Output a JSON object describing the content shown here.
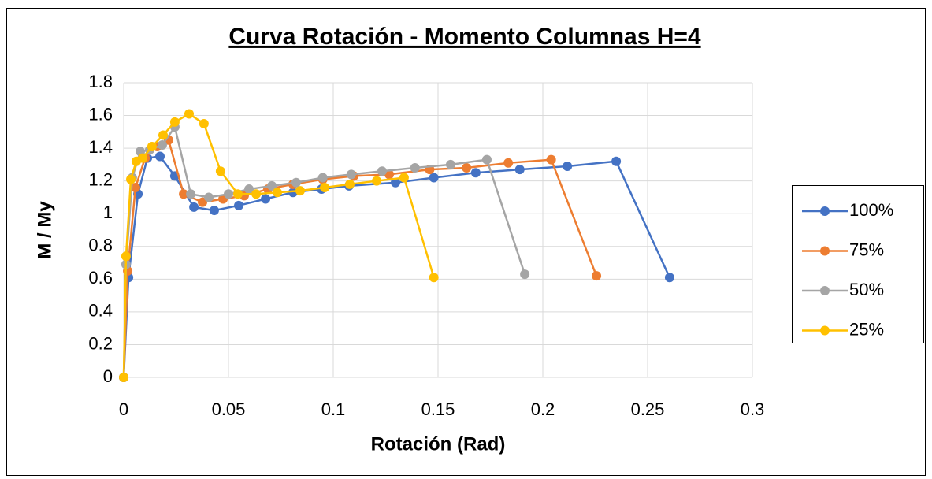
{
  "chart_data": {
    "type": "scatter",
    "title": "Curva Rotación - Momento Columnas H=4",
    "x_label": "Rotación (Rad)",
    "y_label": "M / My",
    "xlim": [
      0,
      0.3
    ],
    "xticks": [
      0,
      0.05,
      0.1,
      0.15,
      0.2,
      0.25,
      0.3
    ],
    "ylim": [
      0,
      1.8
    ],
    "yticks": [
      0,
      0.2,
      0.4,
      0.6,
      0.8,
      1,
      1.2,
      1.4,
      1.6,
      1.8
    ],
    "grid": true,
    "legend": "right",
    "series": [
      {
        "name": "100%",
        "color": "#4472c4",
        "x": [
          0,
          0.0023,
          0.0068,
          0.0113,
          0.0173,
          0.0244,
          0.0335,
          0.0432,
          0.0549,
          0.0677,
          0.0808,
          0.0944,
          0.1075,
          0.1297,
          0.148,
          0.168,
          0.189,
          0.2117,
          0.235,
          0.2605
        ],
        "values": [
          0,
          0.61,
          1.12,
          1.34,
          1.35,
          1.23,
          1.04,
          1.02,
          1.05,
          1.09,
          1.13,
          1.15,
          1.17,
          1.19,
          1.22,
          1.25,
          1.27,
          1.29,
          1.32,
          0.61
        ]
      },
      {
        "name": "75%",
        "color": "#ed7d31",
        "x": [
          0,
          0.0019,
          0.0056,
          0.0102,
          0.016,
          0.0214,
          0.0286,
          0.0376,
          0.0474,
          0.0575,
          0.0688,
          0.0808,
          0.095,
          0.1098,
          0.1267,
          0.146,
          0.1636,
          0.1835,
          0.204,
          0.2256
        ],
        "values": [
          0,
          0.65,
          1.16,
          1.34,
          1.41,
          1.45,
          1.12,
          1.07,
          1.09,
          1.11,
          1.15,
          1.18,
          1.21,
          1.23,
          1.24,
          1.27,
          1.28,
          1.31,
          1.33,
          0.62
        ]
      },
      {
        "name": "50%",
        "color": "#a5a5a5",
        "x": [
          0,
          0.0011,
          0.0041,
          0.0079,
          0.0124,
          0.0184,
          0.0244,
          0.032,
          0.0406,
          0.05,
          0.0598,
          0.0707,
          0.0823,
          0.095,
          0.1086,
          0.1233,
          0.139,
          0.156,
          0.1733,
          0.1914
        ],
        "values": [
          0,
          0.69,
          1.22,
          1.38,
          1.39,
          1.42,
          1.53,
          1.12,
          1.1,
          1.12,
          1.15,
          1.17,
          1.19,
          1.22,
          1.24,
          1.26,
          1.28,
          1.3,
          1.33,
          0.63
        ]
      },
      {
        "name": "25%",
        "color": "#ffc000",
        "x": [
          0,
          0.0011,
          0.0034,
          0.006,
          0.009,
          0.0135,
          0.0188,
          0.0244,
          0.0312,
          0.0383,
          0.0462,
          0.0545,
          0.0632,
          0.0733,
          0.0842,
          0.0959,
          0.1079,
          0.1207,
          0.1338,
          0.148
        ],
        "values": [
          0,
          0.74,
          1.21,
          1.32,
          1.34,
          1.41,
          1.48,
          1.56,
          1.61,
          1.55,
          1.26,
          1.12,
          1.12,
          1.13,
          1.14,
          1.16,
          1.18,
          1.2,
          1.22,
          0.61
        ]
      }
    ]
  }
}
